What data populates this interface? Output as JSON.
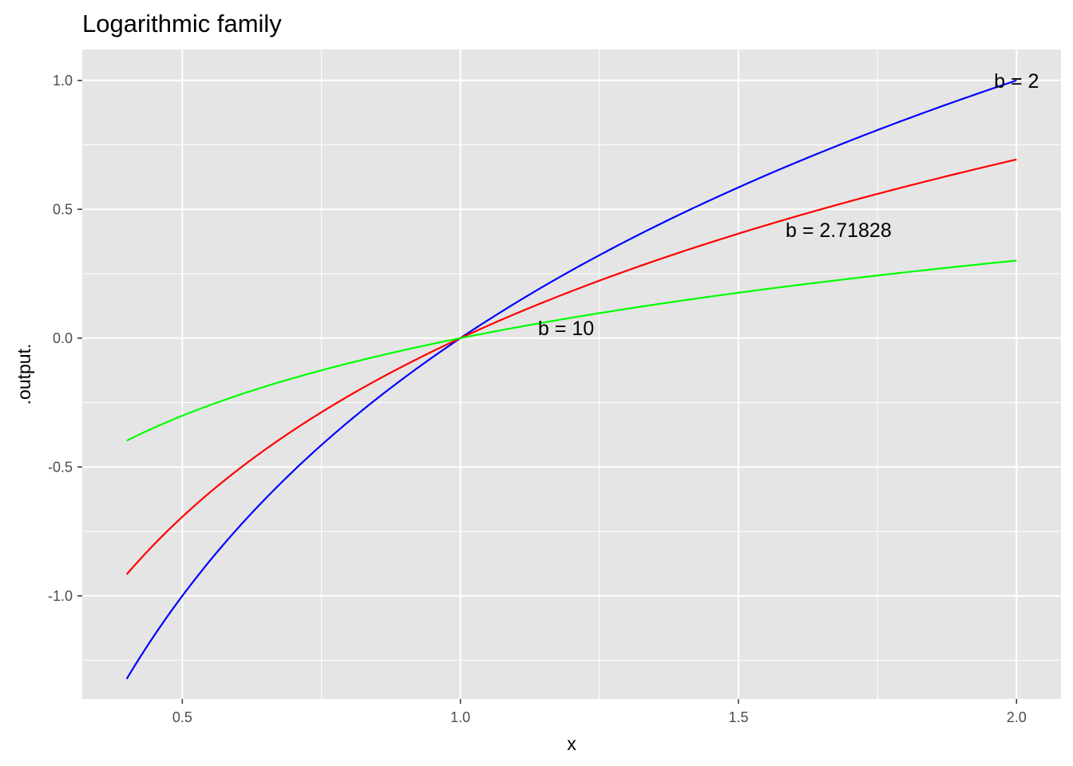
{
  "chart_data": {
    "type": "line",
    "title": "Logarithmic family",
    "xlabel": "x",
    "ylabel": ".output.",
    "xlim": [
      0.32,
      2.08
    ],
    "ylim": [
      -1.4,
      1.12
    ],
    "x_ticks": [
      0.5,
      1.0,
      1.5,
      2.0
    ],
    "x_tick_labels": [
      "0.5",
      "1.0",
      "1.5",
      "2.0"
    ],
    "y_ticks": [
      -1.0,
      -0.5,
      0.0,
      0.5,
      1.0
    ],
    "y_tick_labels": [
      "-1.0",
      "-0.5",
      "0.0",
      "0.5",
      "1.0"
    ],
    "x_minor_grid": [
      0.75,
      1.25,
      1.75
    ],
    "y_minor_grid": [
      -1.25,
      -0.75,
      -0.25,
      0.25,
      0.75
    ],
    "x_range": [
      0.4,
      2.0
    ],
    "panel_background": "#e5e5e5",
    "grid_color": "#ffffff",
    "grid": true,
    "legend": "none",
    "series": [
      {
        "base": 2,
        "color": "#0000ff"
      },
      {
        "base": 2.71828,
        "color": "#ff0000"
      },
      {
        "base": 10,
        "color": "#00ff00"
      }
    ],
    "annotations": [
      {
        "text": "b = 2",
        "x": 2.0,
        "y": 1.0
      },
      {
        "text": "b  = 2.71828",
        "x": 1.68,
        "y": 0.42
      },
      {
        "text": "b = 10",
        "x": 1.19,
        "y": 0.04
      }
    ]
  }
}
